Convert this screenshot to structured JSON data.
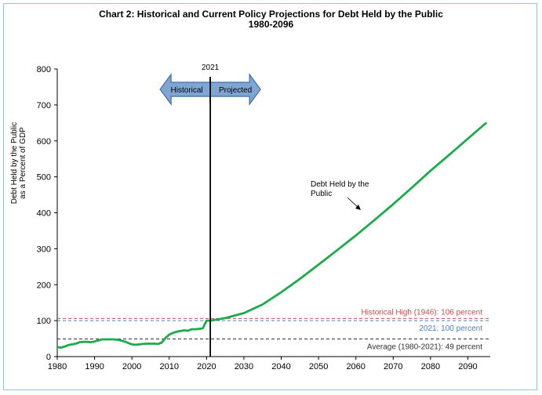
{
  "chart_data": {
    "type": "line",
    "title": "Chart 2:  Historical and Current Policy Projections for Debt Held by the Public",
    "subtitle": "1980-2096",
    "ylabel_line1": "Debt Held by the Public",
    "ylabel_line2": "as a Percent of GDP",
    "xlabel": "",
    "xlim": [
      1980,
      2096
    ],
    "ylim": [
      0,
      800
    ],
    "x_ticks": [
      1980,
      1990,
      2000,
      2010,
      2020,
      2030,
      2040,
      2050,
      2060,
      2070,
      2080,
      2090
    ],
    "y_ticks": [
      0,
      100,
      200,
      300,
      400,
      500,
      600,
      700,
      800
    ],
    "grid": false,
    "series": [
      {
        "name": "Debt Held by the Public",
        "color": "#1aab4b",
        "x": [
          1980,
          1981,
          1982,
          1983,
          1984,
          1985,
          1986,
          1987,
          1988,
          1989,
          1990,
          1991,
          1992,
          1993,
          1994,
          1995,
          1996,
          1997,
          1998,
          1999,
          2000,
          2001,
          2002,
          2003,
          2004,
          2005,
          2006,
          2007,
          2008,
          2009,
          2010,
          2011,
          2012,
          2013,
          2014,
          2015,
          2016,
          2017,
          2018,
          2019,
          2020,
          2021,
          2025,
          2030,
          2035,
          2040,
          2045,
          2050,
          2055,
          2060,
          2065,
          2070,
          2075,
          2080,
          2085,
          2090,
          2095
        ],
        "values": [
          26,
          25,
          28,
          32,
          34,
          36,
          40,
          41,
          41,
          40,
          42,
          45,
          48,
          48,
          48,
          48,
          47,
          45,
          42,
          38,
          34,
          33,
          34,
          35,
          36,
          36,
          36,
          35,
          39,
          52,
          61,
          66,
          69,
          71,
          73,
          72,
          76,
          76,
          77,
          79,
          100,
          100,
          107,
          121,
          145,
          179,
          216,
          256,
          296,
          337,
          380,
          424,
          470,
          517,
          561,
          606,
          651
        ]
      }
    ],
    "reference_lines": [
      {
        "value": 106,
        "label": "Historical High (1946): 106 percent",
        "color": "#c0504d"
      },
      {
        "value": 100,
        "label": "2021: 100 percent",
        "color": "#4f81bd"
      },
      {
        "value": 49,
        "label": "Average (1980-2021): 49 percent",
        "color": "#333333"
      }
    ],
    "vertical_marker": {
      "x": 2021,
      "label": "2021"
    },
    "arrow_labels": {
      "left": "Historical",
      "right": "Projected"
    },
    "annotation": {
      "line1": "Debt Held by the",
      "line2": "Public"
    }
  },
  "colors": {
    "arrow_fill": "#7fa6d3",
    "arrow_stroke": "#3f6fa8",
    "frame": "#9dc3d8"
  }
}
